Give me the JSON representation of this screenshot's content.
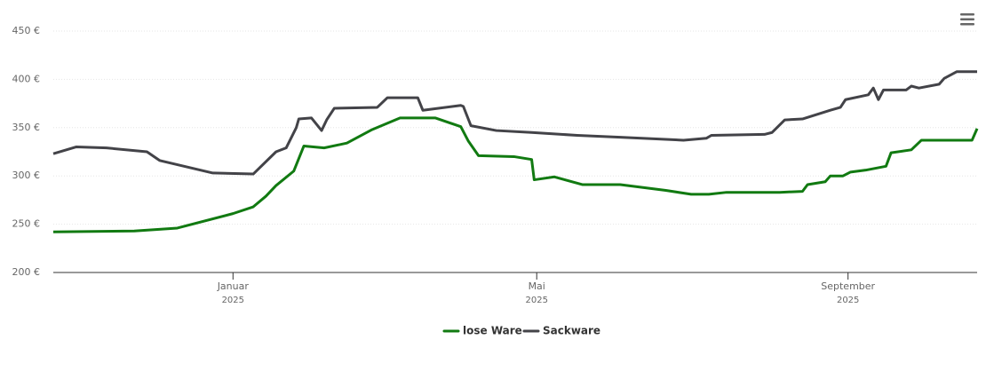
{
  "chart_data": {
    "type": "line",
    "xlim": [
      -71,
      294
    ],
    "xticks": [
      {
        "value": 0,
        "label": "Januar",
        "sublabel": "2025"
      },
      {
        "value": 120,
        "label": "Mai",
        "sublabel": "2025"
      },
      {
        "value": 243,
        "label": "September",
        "sublabel": "2025"
      }
    ],
    "ylim": [
      200,
      450
    ],
    "yticks": [
      {
        "value": 200,
        "label": "200 €"
      },
      {
        "value": 250,
        "label": "250 €"
      },
      {
        "value": 300,
        "label": "300 €"
      },
      {
        "value": 350,
        "label": "350 €"
      },
      {
        "value": 400,
        "label": "400 €"
      },
      {
        "value": 450,
        "label": "450 €"
      }
    ],
    "grid": true,
    "legend": "bottom",
    "series": [
      {
        "name": "lose Ware",
        "color": "#117a11",
        "x": [
          -71,
          -39,
          -22,
          0,
          8,
          13,
          17,
          24,
          28,
          36,
          45,
          55,
          66,
          80,
          90,
          93,
          97,
          111,
          118,
          119,
          127,
          138,
          153,
          171,
          181,
          188,
          195,
          216,
          225,
          227,
          234,
          236,
          241,
          244,
          250,
          258,
          260,
          268,
          272,
          292,
          294
        ],
        "values": [
          242,
          243,
          246,
          261,
          268,
          279,
          290,
          305,
          331,
          329,
          334,
          348,
          360,
          360,
          351,
          336,
          321,
          320,
          317,
          296,
          299,
          291,
          291,
          285,
          281,
          281,
          283,
          283,
          284,
          291,
          294,
          300,
          300,
          304,
          306,
          310,
          324,
          327,
          337,
          337,
          349
        ]
      },
      {
        "name": "Sackware",
        "color": "#434348",
        "x": [
          -71,
          -62,
          -50,
          -34,
          -29,
          -8,
          8,
          17,
          21,
          25,
          26,
          31,
          35,
          37,
          40,
          57,
          61,
          73,
          75,
          90,
          91,
          94,
          104,
          118,
          136,
          153,
          178,
          187,
          189,
          210,
          213,
          218,
          225,
          236,
          240,
          242,
          251,
          253,
          255,
          257,
          266,
          268,
          271,
          279,
          281,
          286,
          294
        ],
        "values": [
          323,
          330,
          329,
          325,
          316,
          303,
          302,
          325,
          329,
          350,
          359,
          360,
          347,
          358,
          370,
          371,
          381,
          381,
          368,
          373,
          372,
          352,
          347,
          345,
          342,
          340,
          337,
          339,
          342,
          343,
          345,
          358,
          359,
          368,
          371,
          379,
          384,
          391,
          379,
          389,
          389,
          393,
          391,
          395,
          401,
          408,
          408
        ]
      }
    ]
  }
}
